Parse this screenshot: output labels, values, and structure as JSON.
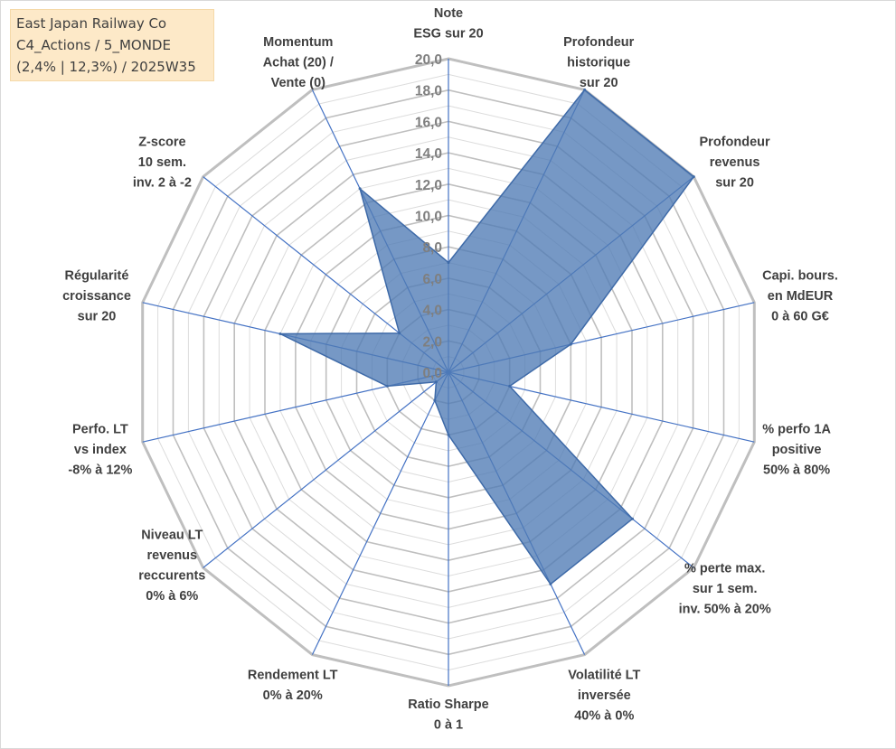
{
  "title_box": {
    "line1": "East Japan Railway Co",
    "line2": "C4_Actions / 5_MONDE",
    "line3": "(2,4% | 12,3%) / 2025W35"
  },
  "colors": {
    "grid": "#bfbfbf",
    "spoke": "#4472c4",
    "fill": "#4f7bb5",
    "title_bg": "#fde9c8"
  },
  "chart_data": {
    "type": "radar",
    "rmax": 20,
    "tick_values": [
      0,
      2,
      4,
      6,
      8,
      10,
      12,
      14,
      16,
      18,
      20
    ],
    "tick_labels": [
      "0,0",
      "2,0",
      "4,0",
      "6,0",
      "8,0",
      "10,0",
      "12,0",
      "14,0",
      "16,0",
      "18,0",
      "20,0"
    ],
    "axes": [
      {
        "lines": [
          "Note",
          "ESG sur 20"
        ],
        "value": 7
      },
      {
        "lines": [
          "Profondeur",
          "historique",
          "sur 20"
        ],
        "value": 20
      },
      {
        "lines": [
          "Profondeur",
          "revenus",
          "sur 20"
        ],
        "value": 20
      },
      {
        "lines": [
          "Capi. bours.",
          "en MdEUR",
          "0 à 60 G€"
        ],
        "value": 8
      },
      {
        "lines": [
          "% perfo 1A",
          "positive",
          "50% à 80%"
        ],
        "value": 4
      },
      {
        "lines": [
          "% perte max.",
          "sur 1 sem.",
          "inv. 50% à 20%"
        ],
        "value": 15
      },
      {
        "lines": [
          "Volatilité LT",
          "inversée",
          "40% à 0%"
        ],
        "value": 15
      },
      {
        "lines": [
          "Ratio Sharpe",
          "0 à 1"
        ],
        "value": 4
      },
      {
        "lines": [
          "Rendement LT",
          "0% à 20%"
        ],
        "value": 2
      },
      {
        "lines": [
          "Niveau LT",
          "revenus",
          "reccurents",
          "0% à 6%"
        ],
        "value": 1
      },
      {
        "lines": [
          "Perfo. LT",
          "vs index",
          "-8% à 12%"
        ],
        "value": 4
      },
      {
        "lines": [
          "Régularité",
          "croissance",
          "sur 20"
        ],
        "value": 11
      },
      {
        "lines": [
          "Z-score",
          "10 sem.",
          "inv. 2 à -2"
        ],
        "value": 4
      },
      {
        "lines": [
          "Momentum",
          "Achat (20) /",
          "Vente (0)"
        ],
        "value": 13
      }
    ]
  }
}
